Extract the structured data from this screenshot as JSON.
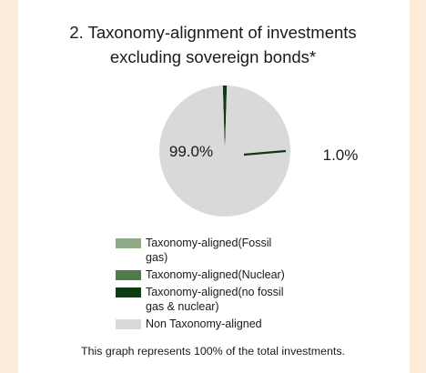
{
  "chart_data": {
    "type": "pie",
    "title": [
      "2. Taxonomy-alignment of investments",
      "excluding sovereign bonds*"
    ],
    "series": [
      {
        "name": "Taxonomy-aligned(Fossil gas)",
        "value": 0.0,
        "color": "#8fa989"
      },
      {
        "name": "Taxonomy-aligned(Nuclear)",
        "value": 0.0,
        "color": "#4f7a4a"
      },
      {
        "name": "Taxonomy-aligned(no fossil gas & nuclear)",
        "value": 1.0,
        "color": "#0e3b12"
      },
      {
        "name": "Non Taxonomy-aligned",
        "value": 99.0,
        "color": "#d9d9d9"
      }
    ],
    "data_labels": [
      "99.0%",
      "1.0%"
    ],
    "legend": {
      "placement": "bottom",
      "entries": [
        {
          "lines": [
            "Taxonomy-aligned(Fossil gas)"
          ],
          "color": "#8fa989"
        },
        {
          "lines": [
            "Taxonomy-aligned(Nuclear)"
          ],
          "color": "#4f7a4a"
        },
        {
          "lines": [
            "Taxonomy-aligned(no fossil",
            "gas & nuclear)"
          ],
          "color": "#0e3b12"
        },
        {
          "lines": [
            "Non Taxonomy-aligned"
          ],
          "color": "#d9d9d9"
        }
      ]
    },
    "footnote": "This graph represents 100% of the total investments."
  },
  "background_color": "#fbebd8",
  "panel_color": "#ffffff"
}
